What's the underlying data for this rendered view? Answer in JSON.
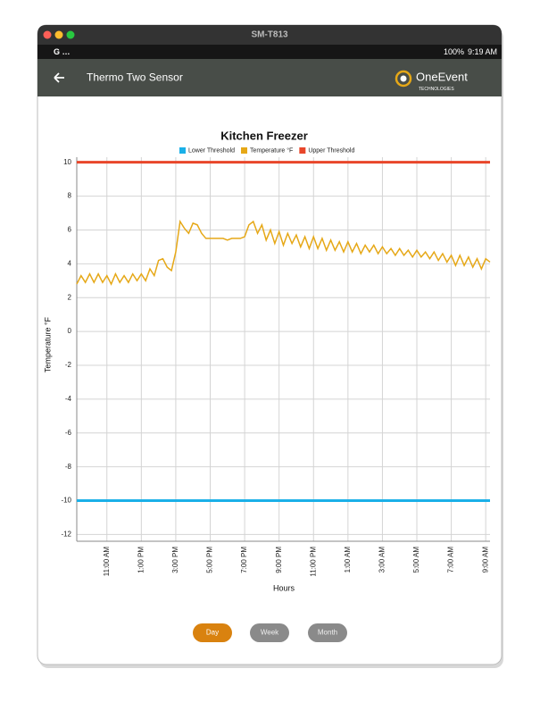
{
  "window": {
    "title": "SM-T813"
  },
  "status_bar": {
    "left": "G …",
    "battery": "100%",
    "time": "9:19 AM"
  },
  "app_bar": {
    "title": "Thermo Two Sensor",
    "brand": "OneEvent",
    "brand_sub": "TECHNOLOGIES"
  },
  "chart_data": {
    "type": "line",
    "title": "Kitchen Freezer",
    "x_label": "Hours",
    "y_label": "Temperature °F",
    "x": [
      9.25,
      9.5,
      9.75,
      10,
      10.25,
      10.5,
      10.75,
      11,
      11.25,
      11.5,
      11.75,
      12,
      12.25,
      12.5,
      12.75,
      13,
      13.25,
      13.5,
      13.75,
      14,
      14.25,
      14.5,
      14.75,
      15,
      15.25,
      15.5,
      15.75,
      16,
      16.25,
      16.5,
      16.75,
      17,
      17.25,
      17.5,
      17.75,
      18,
      18.25,
      18.5,
      18.75,
      19,
      19.25,
      19.5,
      19.75,
      20,
      20.25,
      20.5,
      20.75,
      21,
      21.25,
      21.5,
      21.75,
      22,
      22.25,
      22.5,
      22.75,
      23,
      23.25,
      23.5,
      23.75,
      24,
      24.25,
      24.5,
      24.75,
      25,
      25.25,
      25.5,
      25.75,
      26,
      26.25,
      26.5,
      26.75,
      27,
      27.25,
      27.5,
      27.75,
      28,
      28.25,
      28.5,
      28.75,
      29,
      29.25,
      29.5,
      29.75,
      30,
      30.25,
      30.5,
      30.75,
      31,
      31.25,
      31.5,
      31.75,
      32,
      32.25,
      32.5,
      32.75,
      33,
      33.25
    ],
    "xlim": [
      9.25,
      33.25
    ],
    "xticks": [
      {
        "value": 11,
        "label": "11:00 AM"
      },
      {
        "value": 13,
        "label": "1:00 PM"
      },
      {
        "value": 15,
        "label": "3:00 PM"
      },
      {
        "value": 17,
        "label": "5:00 PM"
      },
      {
        "value": 19,
        "label": "7:00 PM"
      },
      {
        "value": 21,
        "label": "9:00 PM"
      },
      {
        "value": 23,
        "label": "11:00 PM"
      },
      {
        "value": 25,
        "label": "1:00 AM"
      },
      {
        "value": 27,
        "label": "3:00 AM"
      },
      {
        "value": 29,
        "label": "5:00 AM"
      },
      {
        "value": 31,
        "label": "7:00 AM"
      },
      {
        "value": 33,
        "label": "9:00 AM"
      }
    ],
    "ylim": [
      -12.4,
      10.3
    ],
    "yticks": [
      -12,
      -10,
      -8,
      -6,
      -4,
      -2,
      0,
      2,
      4,
      6,
      8,
      10
    ],
    "grid": true,
    "series": [
      {
        "name": "Lower Threshold",
        "color": "#1ab0e8",
        "value": -10
      },
      {
        "name": "Temperature °F",
        "color": "#e6a817",
        "values": [
          2.8,
          3.3,
          2.9,
          3.4,
          2.9,
          3.4,
          2.9,
          3.3,
          2.8,
          3.4,
          2.9,
          3.3,
          2.9,
          3.4,
          3.0,
          3.4,
          3.0,
          3.7,
          3.3,
          4.2,
          4.3,
          3.8,
          3.6,
          4.7,
          6.5,
          6.1,
          5.8,
          6.4,
          6.3,
          5.8,
          5.5,
          5.5,
          5.5,
          5.5,
          5.5,
          5.4,
          5.5,
          5.5,
          5.5,
          5.6,
          6.3,
          6.5,
          5.8,
          6.3,
          5.4,
          6.0,
          5.2,
          5.9,
          5.1,
          5.8,
          5.2,
          5.7,
          5.0,
          5.6,
          4.9,
          5.6,
          4.9,
          5.5,
          4.8,
          5.4,
          4.8,
          5.3,
          4.7,
          5.3,
          4.7,
          5.2,
          4.6,
          5.1,
          4.7,
          5.1,
          4.6,
          5.0,
          4.6,
          4.9,
          4.5,
          4.9,
          4.5,
          4.8,
          4.4,
          4.8,
          4.4,
          4.7,
          4.3,
          4.7,
          4.2,
          4.6,
          4.1,
          4.5,
          3.9,
          4.5,
          3.9,
          4.4,
          3.8,
          4.3,
          3.7,
          4.3,
          4.1
        ]
      },
      {
        "name": "Upper Threshold",
        "color": "#e8462a",
        "value": 10
      }
    ]
  },
  "range_buttons": [
    "Day",
    "Week",
    "Month"
  ]
}
